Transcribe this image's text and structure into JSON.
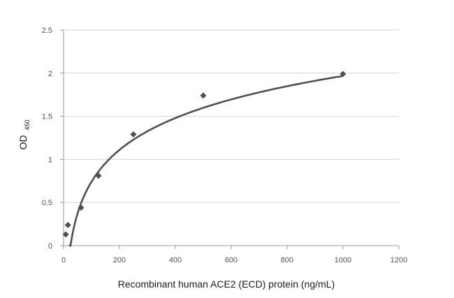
{
  "chart_data": {
    "type": "scatter",
    "title": "",
    "xlabel": "Recombinant human ACE2 (ECD) protein (ng/mL)",
    "ylabel": "OD",
    "ylabel_subscript": "450",
    "xlim": [
      0,
      1200
    ],
    "ylim": [
      0,
      2.5
    ],
    "x_ticks": [
      0,
      200,
      400,
      600,
      800,
      1000,
      1200
    ],
    "y_ticks": [
      0,
      0.5,
      1,
      1.5,
      2,
      2.5
    ],
    "y_tick_labels": [
      "0",
      "0.5",
      "1",
      "1.5",
      "2",
      "2.5"
    ],
    "grid": "horizontal",
    "legend": "none",
    "marker": "diamond",
    "colors": {
      "points": "#505050",
      "curve": "#505050",
      "grid": "#d4d4d4",
      "axis": "#999999"
    },
    "series": [
      {
        "values": [
          {
            "x": 7.8,
            "y": 0.13
          },
          {
            "x": 15.6,
            "y": 0.24
          },
          {
            "x": 62.5,
            "y": 0.44
          },
          {
            "x": 125,
            "y": 0.81
          },
          {
            "x": 250,
            "y": 1.29
          },
          {
            "x": 500,
            "y": 1.74
          },
          {
            "x": 1000,
            "y": 1.99
          }
        ]
      }
    ],
    "trendline": {
      "type": "logarithmic",
      "a": 0.5326,
      "b": -1.712,
      "x_range": [
        22,
        1000
      ]
    }
  }
}
